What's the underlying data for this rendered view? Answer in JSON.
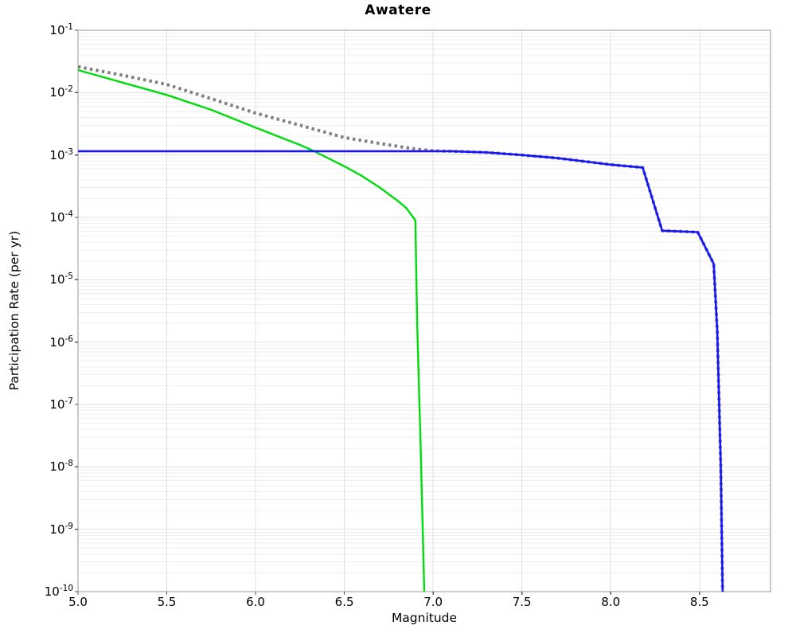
{
  "chart_data": {
    "type": "line",
    "title": "Awatere",
    "xlabel": "Magnitude",
    "ylabel": "Participation Rate (per yr)",
    "x_range": [
      5.0,
      8.9
    ],
    "y_scale": "log",
    "y_exponent_range": [
      -1,
      -10
    ],
    "y_tick_base": "10",
    "grid": true,
    "legend": false,
    "x_ticks": [
      {
        "label": "5.0",
        "value": 5.0
      },
      {
        "label": "5.5",
        "value": 5.5
      },
      {
        "label": "6.0",
        "value": 6.0
      },
      {
        "label": "6.5",
        "value": 6.5
      },
      {
        "label": "7.0",
        "value": 7.0
      },
      {
        "label": "7.5",
        "value": 7.5
      },
      {
        "label": "8.0",
        "value": 8.0
      },
      {
        "label": "8.5",
        "value": 8.5
      }
    ],
    "y_tick_exponents": [
      -1,
      -2,
      -3,
      -4,
      -5,
      -6,
      -7,
      -8,
      -9,
      -10
    ],
    "series": [
      {
        "name": "gray-dotted-curve",
        "style": "dotted",
        "color": "#7f7f7f",
        "width": 4,
        "points": [
          [
            5.0,
            0.026
          ],
          [
            5.25,
            0.019
          ],
          [
            5.5,
            0.0135
          ],
          [
            5.75,
            0.008
          ],
          [
            6.0,
            0.0047
          ],
          [
            6.25,
            0.003
          ],
          [
            6.5,
            0.0019
          ],
          [
            6.75,
            0.00145
          ],
          [
            6.9,
            0.00125
          ],
          [
            7.0,
            0.00117
          ],
          [
            7.1,
            0.00115
          ],
          [
            7.3,
            0.0011
          ],
          [
            7.5,
            0.001
          ],
          [
            7.7,
            0.00089
          ],
          [
            7.9,
            0.00076
          ],
          [
            8.0,
            0.0007
          ],
          [
            8.1,
            0.00066
          ],
          [
            8.18,
            0.00063
          ],
          [
            8.29,
            6.1e-05
          ],
          [
            8.49,
            5.8e-05
          ],
          [
            8.58,
            1.8e-05
          ],
          [
            8.6,
            1.5e-06
          ],
          [
            8.62,
            1e-08
          ],
          [
            8.63,
            1e-10
          ]
        ]
      },
      {
        "name": "green-solid-curve",
        "style": "solid",
        "color": "#00dd0c",
        "width": 2.4,
        "points": [
          [
            5.0,
            0.023
          ],
          [
            5.25,
            0.0145
          ],
          [
            5.5,
            0.0092
          ],
          [
            5.75,
            0.0053
          ],
          [
            6.0,
            0.00275
          ],
          [
            6.25,
            0.00145
          ],
          [
            6.33,
            0.00115
          ],
          [
            6.5,
            0.00066
          ],
          [
            6.6,
            0.00046
          ],
          [
            6.7,
            0.0003
          ],
          [
            6.8,
            0.000185
          ],
          [
            6.85,
            0.00014
          ],
          [
            6.9,
            9e-05
          ],
          [
            6.91,
            2e-06
          ],
          [
            6.93,
            2e-08
          ],
          [
            6.95,
            1e-10
          ]
        ]
      },
      {
        "name": "blue-solid-curve",
        "style": "solid",
        "color": "#1414ff",
        "width": 2.6,
        "points": [
          [
            5.0,
            0.00115
          ],
          [
            7.1,
            0.00115
          ],
          [
            7.3,
            0.0011
          ],
          [
            7.5,
            0.001
          ],
          [
            7.7,
            0.00089
          ],
          [
            7.9,
            0.00076
          ],
          [
            8.0,
            0.0007
          ],
          [
            8.1,
            0.00066
          ],
          [
            8.18,
            0.00063
          ],
          [
            8.29,
            6.1e-05
          ],
          [
            8.49,
            5.8e-05
          ],
          [
            8.58,
            1.8e-05
          ],
          [
            8.6,
            1.5e-06
          ],
          [
            8.62,
            1e-08
          ],
          [
            8.63,
            1e-10
          ]
        ]
      }
    ],
    "style": {
      "minor_grid_color": "#efefef",
      "major_grid_color": "#e0e0e0",
      "border_color": "#999999",
      "tick_color": "#555555"
    }
  }
}
